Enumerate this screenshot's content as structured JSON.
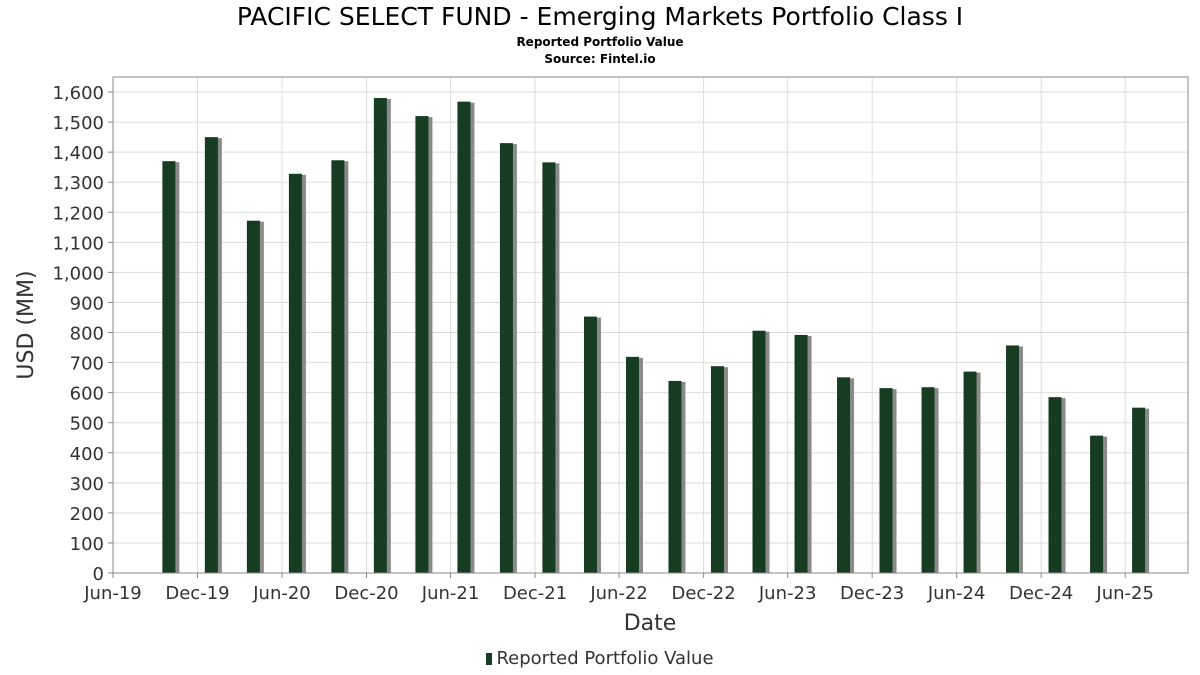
{
  "colors": {
    "bar": "#163d22",
    "bar_shadow": "#8a8a8a",
    "grid": "#dddddd",
    "axis": "#888888"
  },
  "chart_data": {
    "type": "bar",
    "title": "PACIFIC SELECT FUND - Emerging Markets Portfolio Class I",
    "subtitle_lines": [
      "Reported Portfolio Value",
      "Source: Fintel.io"
    ],
    "xlabel": "Date",
    "ylabel": "USD (MM)",
    "ylim": [
      0,
      1650
    ],
    "yticks": [
      0,
      100,
      200,
      300,
      400,
      500,
      600,
      700,
      800,
      900,
      1000,
      1100,
      1200,
      1300,
      1400,
      1500,
      1600
    ],
    "ytick_labels": [
      "0",
      "100",
      "200",
      "300",
      "400",
      "500",
      "600",
      "700",
      "800",
      "900",
      "1,000",
      "1,100",
      "1,200",
      "1,300",
      "1,400",
      "1,500",
      "1,600"
    ],
    "xlim": [
      "2019-06-01",
      "2025-10-15"
    ],
    "xticks": [
      "2019-06-01",
      "2019-12-01",
      "2020-06-01",
      "2020-12-01",
      "2021-06-01",
      "2021-12-01",
      "2022-06-01",
      "2022-12-01",
      "2023-06-01",
      "2023-12-01",
      "2024-06-01",
      "2024-12-01",
      "2025-06-01"
    ],
    "xtick_labels": [
      "Jun-19",
      "Dec-19",
      "Jun-20",
      "Dec-20",
      "Jun-21",
      "Dec-21",
      "Jun-22",
      "Dec-22",
      "Jun-23",
      "Dec-23",
      "Jun-24",
      "Dec-24",
      "Jun-25"
    ],
    "legend": {
      "position": "bottom"
    },
    "grid": true,
    "series": [
      {
        "name": "Reported Portfolio Value",
        "points": [
          {
            "x": "2019-09-30",
            "y": 1370
          },
          {
            "x": "2019-12-31",
            "y": 1450
          },
          {
            "x": "2020-03-31",
            "y": 1172
          },
          {
            "x": "2020-06-30",
            "y": 1328
          },
          {
            "x": "2020-09-30",
            "y": 1373
          },
          {
            "x": "2020-12-31",
            "y": 1580
          },
          {
            "x": "2021-03-31",
            "y": 1520
          },
          {
            "x": "2021-06-30",
            "y": 1568
          },
          {
            "x": "2021-09-30",
            "y": 1430
          },
          {
            "x": "2021-12-31",
            "y": 1366
          },
          {
            "x": "2022-03-31",
            "y": 853
          },
          {
            "x": "2022-06-30",
            "y": 719
          },
          {
            "x": "2022-09-30",
            "y": 639
          },
          {
            "x": "2022-12-31",
            "y": 688
          },
          {
            "x": "2023-03-31",
            "y": 806
          },
          {
            "x": "2023-06-30",
            "y": 792
          },
          {
            "x": "2023-09-30",
            "y": 651
          },
          {
            "x": "2023-12-31",
            "y": 615
          },
          {
            "x": "2024-03-31",
            "y": 618
          },
          {
            "x": "2024-06-30",
            "y": 670
          },
          {
            "x": "2024-09-30",
            "y": 757
          },
          {
            "x": "2024-12-31",
            "y": 585
          },
          {
            "x": "2025-03-31",
            "y": 457
          },
          {
            "x": "2025-06-30",
            "y": 550
          }
        ]
      }
    ]
  }
}
